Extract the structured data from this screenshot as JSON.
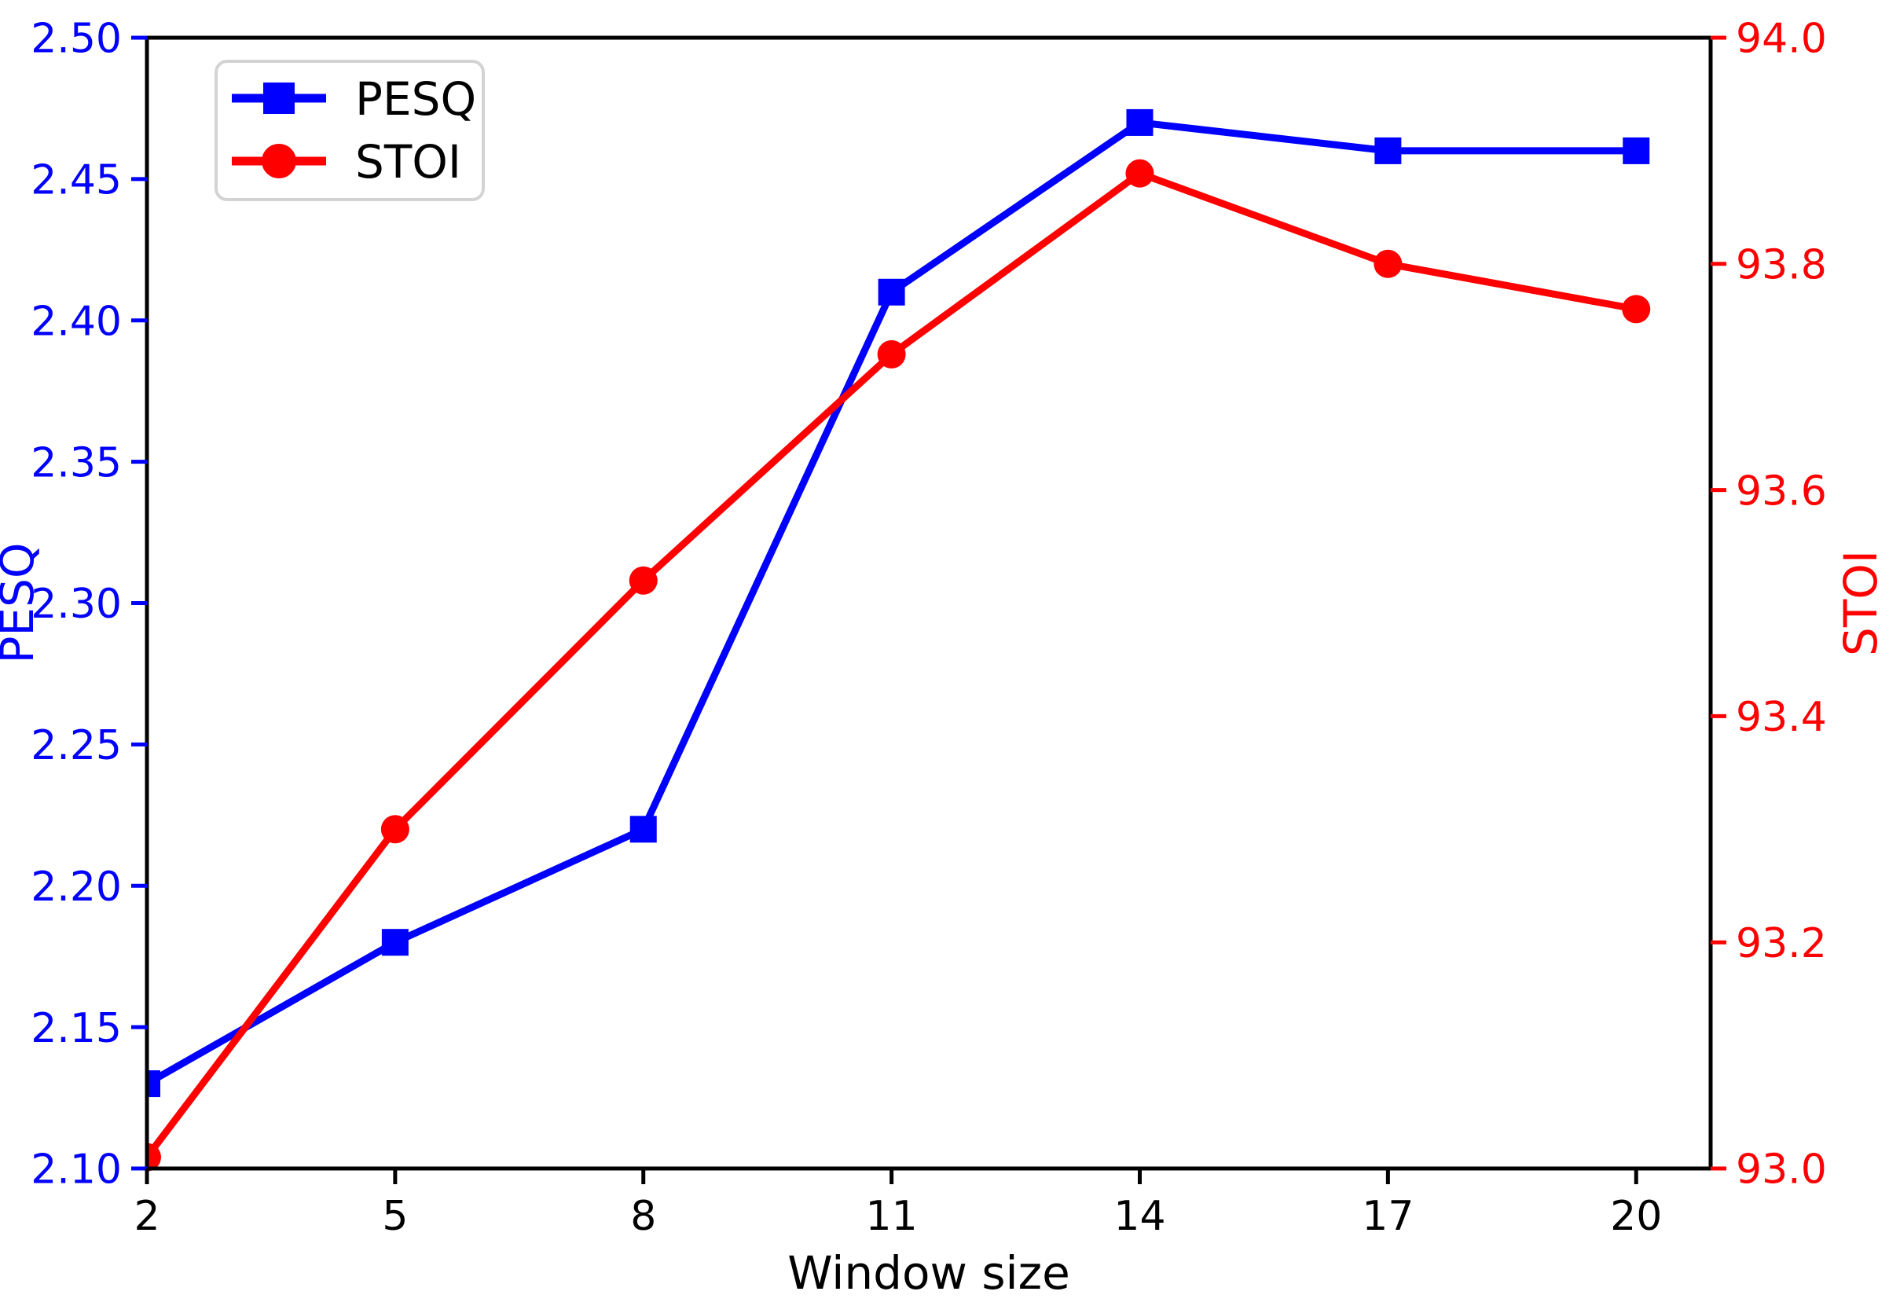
{
  "chart_data": {
    "type": "line",
    "title": "",
    "x": [
      2,
      5,
      8,
      11,
      14,
      17,
      20
    ],
    "x_axis": {
      "label": "Window size",
      "min": 2,
      "max": 20.9,
      "tick_labels": [
        "2",
        "5",
        "8",
        "11",
        "14",
        "17",
        "20"
      ],
      "tick_color": "#000000",
      "label_color": "#000000"
    },
    "left_axis": {
      "label": "PESQ",
      "min": 2.1,
      "max": 2.5,
      "tick_values": [
        2.5,
        2.45,
        2.4,
        2.35,
        2.3,
        2.25,
        2.2,
        2.15,
        2.1
      ],
      "tick_labels": [
        "2.50",
        "2.45",
        "2.40",
        "2.35",
        "2.30",
        "2.25",
        "2.20",
        "2.15",
        "2.10"
      ],
      "color": "#0000ff"
    },
    "right_axis": {
      "label": "STOI",
      "min": 93.0,
      "max": 94.0,
      "tick_values": [
        94.0,
        93.8,
        93.6,
        93.4,
        93.2,
        93.0
      ],
      "tick_labels": [
        "94.0",
        "93.8",
        "93.6",
        "93.4",
        "93.2",
        "93.0"
      ],
      "color": "#ff0000"
    },
    "series": [
      {
        "name": "PESQ",
        "axis": "left",
        "color": "#0000ff",
        "marker": "square",
        "values": [
          2.13,
          2.18,
          2.22,
          2.41,
          2.47,
          2.46,
          2.46
        ]
      },
      {
        "name": "STOI",
        "axis": "right",
        "color": "#ff0000",
        "marker": "circle",
        "values": [
          93.01,
          93.3,
          93.52,
          93.72,
          93.88,
          93.8,
          93.76
        ]
      }
    ],
    "legend": {
      "position": "top-left",
      "entries": [
        "PESQ",
        "STOI"
      ],
      "border_color": "#d3d3d3",
      "background": "#ffffff",
      "text_color": "#000000"
    },
    "grid": false,
    "spine_color": "#000000",
    "background": "#ffffff"
  }
}
